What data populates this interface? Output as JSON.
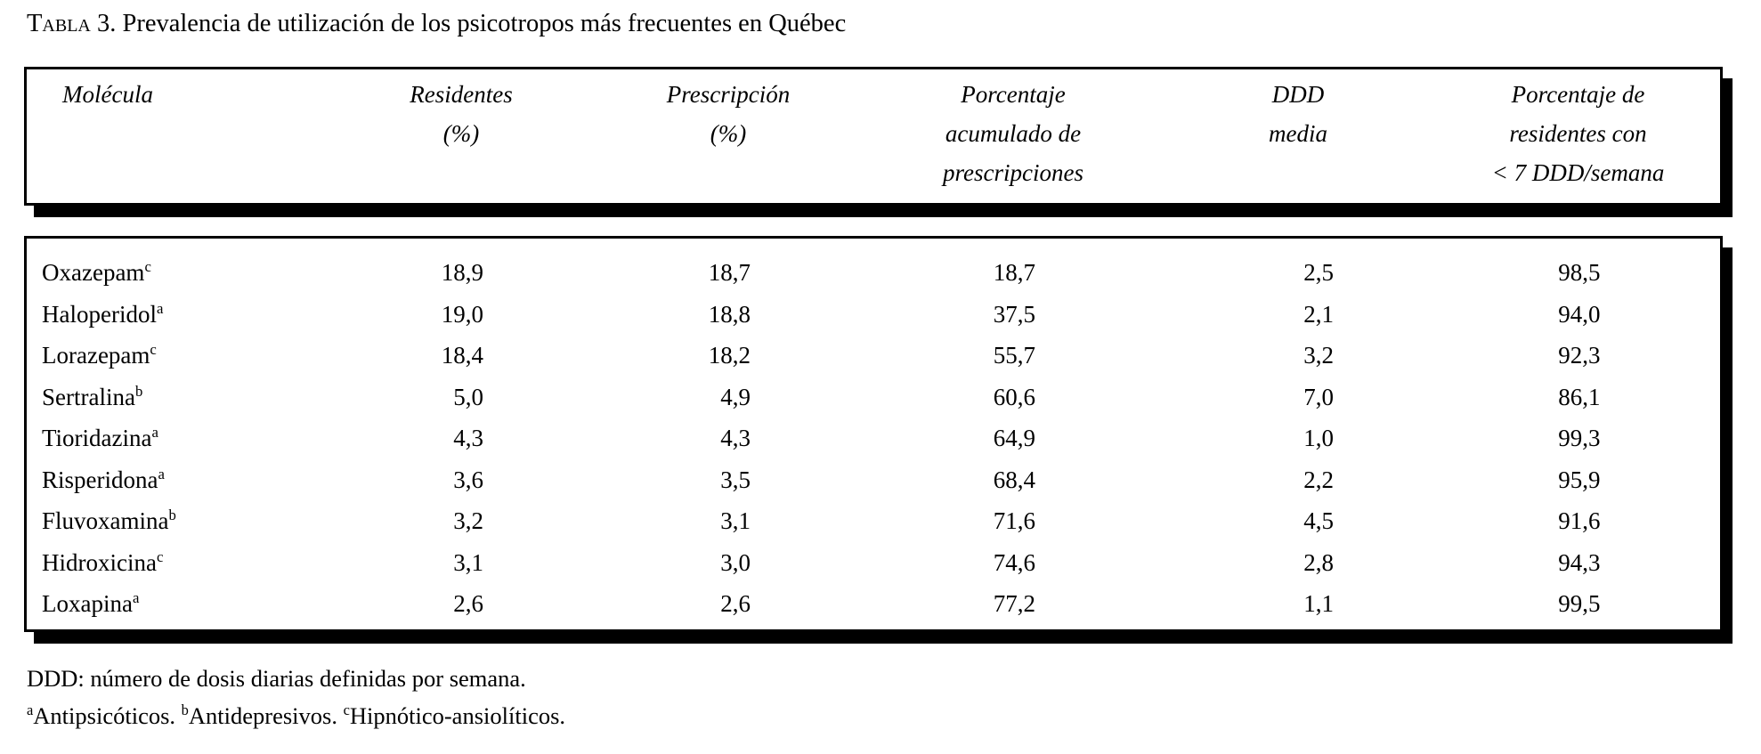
{
  "title": {
    "label": "Tabla 3.",
    "text": " Prevalencia de utilización de los psicotropos más frecuentes en Québec"
  },
  "table": {
    "columns": [
      {
        "lines": [
          "Molécula"
        ]
      },
      {
        "lines": [
          "Residentes",
          "(%)"
        ]
      },
      {
        "lines": [
          "Prescripción",
          "(%)"
        ]
      },
      {
        "lines": [
          "Porcentaje",
          "acumulado de",
          "prescripciones"
        ]
      },
      {
        "lines": [
          "DDD",
          "media"
        ]
      },
      {
        "lines": [
          "Porcentaje de",
          "residentes con",
          "< 7 DDD/semana"
        ]
      }
    ],
    "rows": [
      {
        "molecule": "Oxazepam",
        "sup": "c",
        "values": [
          "18,9",
          "18,7",
          "18,7",
          "2,5",
          "98,5"
        ]
      },
      {
        "molecule": "Haloperidol",
        "sup": "a",
        "values": [
          "19,0",
          "18,8",
          "37,5",
          "2,1",
          "94,0"
        ]
      },
      {
        "molecule": "Lorazepam",
        "sup": "c",
        "values": [
          "18,4",
          "18,2",
          "55,7",
          "3,2",
          "92,3"
        ]
      },
      {
        "molecule": "Sertralina",
        "sup": "b",
        "values": [
          "5,0",
          "4,9",
          "60,6",
          "7,0",
          "86,1"
        ]
      },
      {
        "molecule": "Tioridazina",
        "sup": "a",
        "values": [
          "4,3",
          "4,3",
          "64,9",
          "1,0",
          "99,3"
        ]
      },
      {
        "molecule": "Risperidona",
        "sup": "a",
        "values": [
          "3,6",
          "3,5",
          "68,4",
          "2,2",
          "95,9"
        ]
      },
      {
        "molecule": "Fluvoxamina",
        "sup": "b",
        "values": [
          "3,2",
          "3,1",
          "71,6",
          "4,5",
          "91,6"
        ]
      },
      {
        "molecule": "Hidroxicina",
        "sup": "c",
        "values": [
          "3,1",
          "3,0",
          "74,6",
          "2,8",
          "94,3"
        ]
      },
      {
        "molecule": "Loxapina",
        "sup": "a",
        "values": [
          "2,6",
          "2,6",
          "77,2",
          "1,1",
          "99,5"
        ]
      }
    ]
  },
  "footnotes": {
    "line1": "DDD: número de dosis diarias definidas por semana.",
    "line2_parts": [
      {
        "sup": "a",
        "text": "Antipsicóticos."
      },
      {
        "sup": "b",
        "text": "Antidepresivos."
      },
      {
        "sup": "c",
        "text": "Hipnótico-ansiolíticos."
      }
    ]
  },
  "colors": {
    "ink": "#000000",
    "paper": "#ffffff"
  }
}
